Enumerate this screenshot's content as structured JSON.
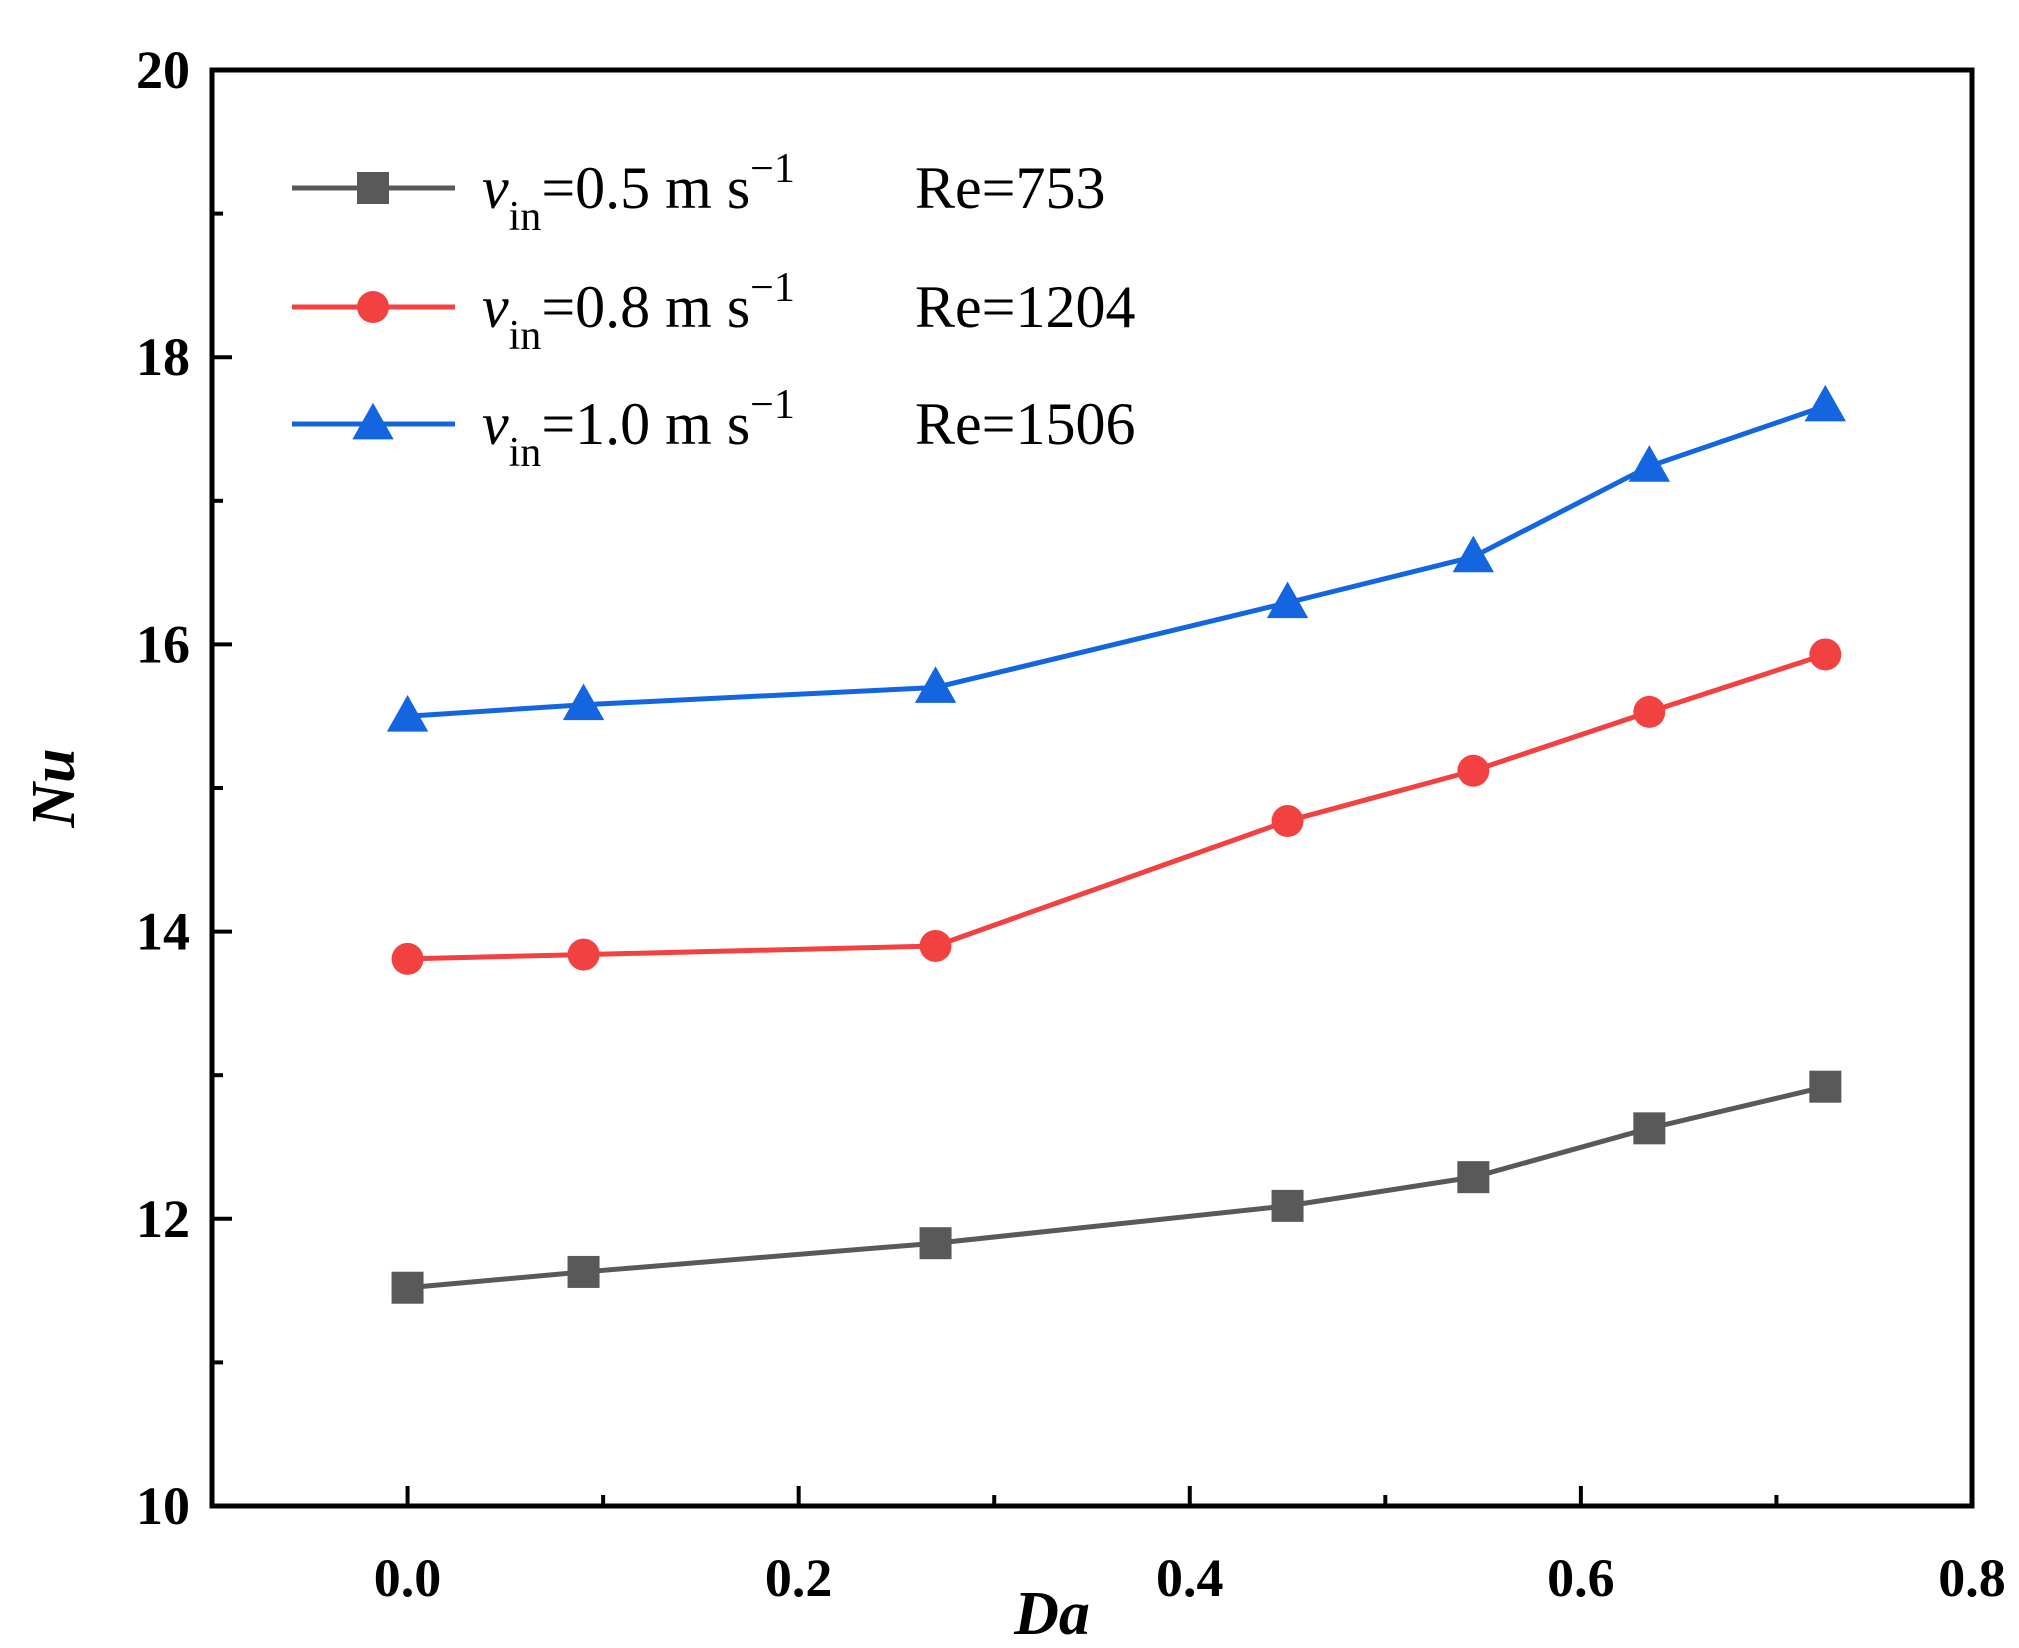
{
  "chart_data": {
    "type": "line",
    "xlabel": "Da",
    "ylabel": "Nu",
    "xlim": [
      -0.1,
      0.8
    ],
    "ylim": [
      10,
      20
    ],
    "xticks": [
      "0.0",
      "0.2",
      "0.4",
      "0.6",
      "0.8"
    ],
    "yticks": [
      "10",
      "12",
      "14",
      "16",
      "18",
      "20"
    ],
    "grid": false,
    "legend_position": "top-left",
    "x": [
      0.0,
      0.09,
      0.27,
      0.45,
      0.545,
      0.635,
      0.725
    ],
    "series": [
      {
        "name": "vin=0.5 m s−1 Re=753",
        "legend": {
          "v": "v",
          "sub": "in",
          "mid": "=0.5 m s",
          "sup": "−1",
          "re": "Re=753"
        },
        "color": "#595959",
        "marker": "square",
        "values": [
          11.52,
          11.63,
          11.83,
          12.09,
          12.29,
          12.63,
          12.92
        ]
      },
      {
        "name": "vin=0.8 m s−1 Re=1204",
        "legend": {
          "v": "v",
          "sub": "in",
          "mid": "=0.8 m s",
          "sup": "−1",
          "re": "Re=1204"
        },
        "color": "#f24141",
        "marker": "circle",
        "values": [
          13.81,
          13.84,
          13.9,
          14.77,
          15.12,
          15.53,
          15.93
        ]
      },
      {
        "name": "vin=1.0 m s−1 Re=1506",
        "legend": {
          "v": "v",
          "sub": "in",
          "mid": "=1.0 m s",
          "sup": "−1",
          "re": "Re=1506"
        },
        "color": "#1466e0",
        "marker": "triangle",
        "values": [
          15.5,
          15.58,
          15.7,
          16.29,
          16.61,
          17.24,
          17.66
        ]
      }
    ]
  }
}
